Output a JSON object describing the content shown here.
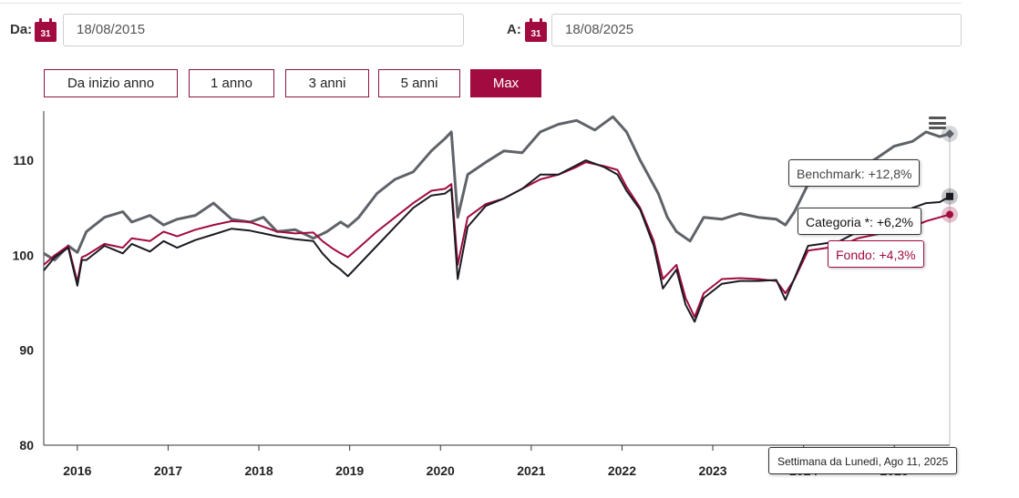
{
  "filters": {
    "from_label": "Da:",
    "from_value": "18/08/2015",
    "to_label": "A:",
    "to_value": "18/08/2025",
    "calendar_day": "31"
  },
  "ranges": [
    {
      "label": "Da inizio anno",
      "active": false
    },
    {
      "label": "1 anno",
      "active": false
    },
    {
      "label": "3 anni",
      "active": false
    },
    {
      "label": "5 anni",
      "active": false
    },
    {
      "label": "Max",
      "active": true
    }
  ],
  "menu_icon": "hamburger-icon",
  "tooltips": {
    "benchmark": "Benchmark: +12,8%",
    "categoria": "Categoria *: +6,2%",
    "fondo": "Fondo: +4,3%",
    "date": "Settimana da Lunedì, Ago 11, 2025"
  },
  "colors": {
    "accent": "#a10b3f",
    "benchmark": "#5f6369",
    "categoria": "#1a1a22",
    "fondo": "#a10b3f"
  },
  "chart_data": {
    "type": "line",
    "ylim": [
      80,
      115
    ],
    "yticks": [
      80,
      90,
      100,
      110
    ],
    "xlim": [
      2015.63,
      2025.61
    ],
    "xticks": [
      "2016",
      "2017",
      "2018",
      "2019",
      "2020",
      "2021",
      "2022",
      "2023",
      "2024",
      "2025"
    ],
    "series": [
      {
        "name": "Benchmark",
        "color": "#5f6369",
        "x": [
          2015.63,
          2015.75,
          2015.9,
          2016.0,
          2016.1,
          2016.3,
          2016.5,
          2016.6,
          2016.8,
          2016.95,
          2017.1,
          2017.3,
          2017.5,
          2017.7,
          2017.9,
          2018.05,
          2018.2,
          2018.4,
          2018.6,
          2018.75,
          2018.9,
          2018.98,
          2019.1,
          2019.3,
          2019.5,
          2019.7,
          2019.9,
          2020.05,
          2020.12,
          2020.19,
          2020.3,
          2020.5,
          2020.7,
          2020.9,
          2021.1,
          2021.3,
          2021.5,
          2021.7,
          2021.9,
          2022.05,
          2022.2,
          2022.4,
          2022.5,
          2022.6,
          2022.75,
          2022.9,
          2023.1,
          2023.3,
          2023.5,
          2023.7,
          2023.8,
          2023.9,
          2024.05,
          2024.2,
          2024.4,
          2024.6,
          2024.8,
          2025.0,
          2025.2,
          2025.35,
          2025.5,
          2025.61
        ],
        "y": [
          100.2,
          99.5,
          101.0,
          100.3,
          102.5,
          104.0,
          104.6,
          103.5,
          104.2,
          103.2,
          103.8,
          104.2,
          105.5,
          103.8,
          103.5,
          104.0,
          102.5,
          102.7,
          101.8,
          102.5,
          103.5,
          103.0,
          104.0,
          106.5,
          108.0,
          108.8,
          111.0,
          112.3,
          113.0,
          104.0,
          108.5,
          109.8,
          111.0,
          110.8,
          113.0,
          113.8,
          114.2,
          113.2,
          114.6,
          113.0,
          110.0,
          106.5,
          104.0,
          102.5,
          101.5,
          104.0,
          103.8,
          104.4,
          104.0,
          103.8,
          103.2,
          104.6,
          107.5,
          108.5,
          108.5,
          109.0,
          110.2,
          111.5,
          112.0,
          113.0,
          112.5,
          112.8
        ]
      },
      {
        "name": "Categoria *",
        "color": "#1a1a22",
        "x": [
          2015.63,
          2015.75,
          2015.9,
          2016.0,
          2016.05,
          2016.1,
          2016.3,
          2016.5,
          2016.6,
          2016.8,
          2016.95,
          2017.1,
          2017.3,
          2017.5,
          2017.7,
          2017.9,
          2018.05,
          2018.2,
          2018.4,
          2018.6,
          2018.7,
          2018.8,
          2018.9,
          2018.98,
          2019.1,
          2019.3,
          2019.5,
          2019.7,
          2019.9,
          2020.05,
          2020.12,
          2020.19,
          2020.3,
          2020.5,
          2020.7,
          2020.9,
          2021.1,
          2021.3,
          2021.5,
          2021.6,
          2021.8,
          2021.95,
          2022.05,
          2022.2,
          2022.35,
          2022.45,
          2022.6,
          2022.7,
          2022.8,
          2022.9,
          2023.1,
          2023.3,
          2023.5,
          2023.7,
          2023.8,
          2023.9,
          2024.05,
          2024.2,
          2024.4,
          2024.6,
          2024.8,
          2025.0,
          2025.2,
          2025.35,
          2025.5,
          2025.61
        ],
        "y": [
          98.4,
          99.8,
          100.8,
          96.8,
          99.5,
          99.5,
          101.0,
          100.2,
          101.2,
          100.4,
          101.5,
          100.8,
          101.6,
          102.2,
          102.8,
          102.6,
          102.3,
          102.0,
          101.7,
          101.5,
          100.2,
          99.2,
          98.5,
          97.8,
          99.0,
          101.0,
          103.0,
          105.0,
          106.3,
          106.5,
          107.0,
          97.5,
          103.0,
          105.2,
          106.0,
          107.0,
          108.5,
          108.5,
          109.5,
          110.0,
          109.3,
          108.5,
          106.8,
          104.8,
          101.0,
          96.5,
          98.5,
          94.8,
          93.0,
          95.5,
          97.0,
          97.3,
          97.3,
          97.4,
          95.3,
          97.6,
          101.0,
          101.2,
          101.5,
          102.5,
          103.0,
          104.0,
          105.0,
          105.5,
          105.6,
          106.2
        ]
      },
      {
        "name": "Fondo",
        "color": "#a10b3f",
        "x": [
          2015.63,
          2015.75,
          2015.9,
          2016.0,
          2016.05,
          2016.1,
          2016.3,
          2016.5,
          2016.6,
          2016.8,
          2016.95,
          2017.1,
          2017.3,
          2017.5,
          2017.7,
          2017.9,
          2018.05,
          2018.2,
          2018.4,
          2018.6,
          2018.7,
          2018.8,
          2018.9,
          2018.98,
          2019.1,
          2019.3,
          2019.5,
          2019.7,
          2019.9,
          2020.05,
          2020.12,
          2020.19,
          2020.3,
          2020.5,
          2020.7,
          2020.9,
          2021.1,
          2021.3,
          2021.5,
          2021.6,
          2021.8,
          2021.95,
          2022.05,
          2022.2,
          2022.35,
          2022.45,
          2022.6,
          2022.7,
          2022.8,
          2022.9,
          2023.1,
          2023.3,
          2023.5,
          2023.7,
          2023.8,
          2023.9,
          2024.05,
          2024.2,
          2024.4,
          2024.6,
          2024.8,
          2025.0,
          2025.2,
          2025.35,
          2025.5,
          2025.61
        ],
        "y": [
          99.0,
          100.0,
          101.0,
          97.2,
          99.8,
          100.0,
          101.2,
          100.8,
          101.8,
          101.5,
          102.5,
          102.0,
          102.7,
          103.2,
          103.6,
          103.5,
          103.0,
          102.5,
          102.3,
          102.4,
          101.5,
          100.8,
          100.2,
          99.8,
          100.8,
          102.5,
          104.0,
          105.5,
          106.8,
          107.0,
          107.5,
          99.0,
          104.0,
          105.4,
          106.0,
          107.0,
          108.0,
          108.5,
          109.3,
          109.8,
          109.4,
          109.0,
          107.2,
          105.0,
          101.5,
          97.5,
          99.0,
          95.5,
          93.5,
          96.0,
          97.5,
          97.6,
          97.5,
          97.3,
          96.0,
          97.5,
          100.5,
          100.7,
          101.0,
          101.8,
          102.2,
          102.5,
          103.0,
          103.6,
          104.0,
          104.3
        ]
      }
    ]
  }
}
